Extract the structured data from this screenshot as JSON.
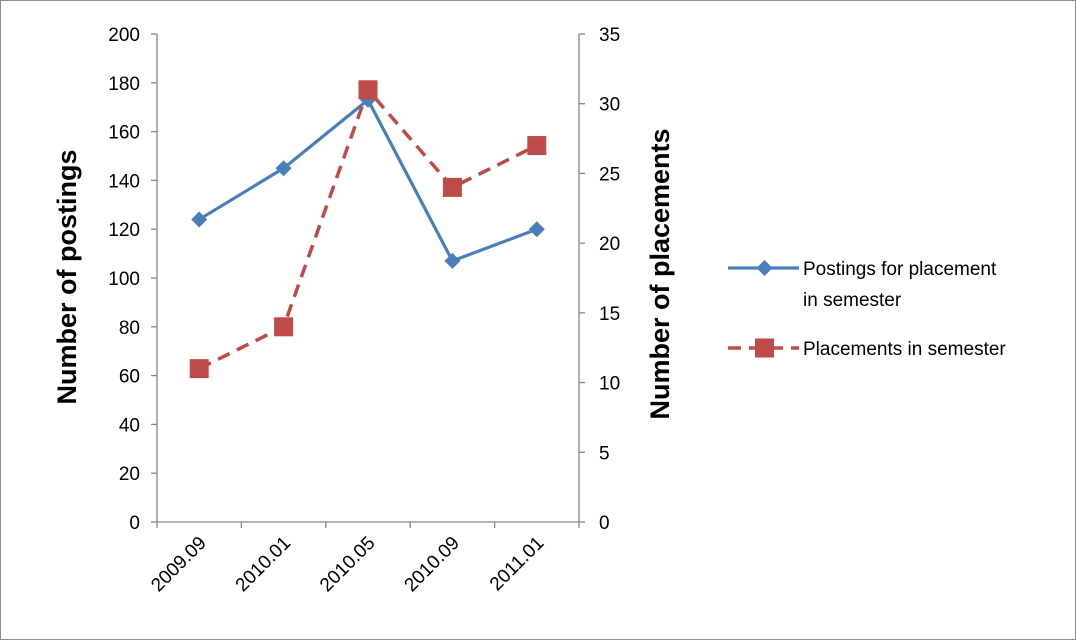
{
  "chart_data": {
    "type": "line",
    "categories": [
      "2009.09",
      "2010.01",
      "2010.05",
      "2010.09",
      "2011.01"
    ],
    "series": [
      {
        "name": "Postings for placement in semester",
        "name_lines": [
          "Postings for placement",
          "in semester"
        ],
        "axis": "left",
        "values": [
          124,
          145,
          173,
          107,
          120
        ],
        "color": "#4a7ebb",
        "line_style": "solid",
        "marker": "diamond"
      },
      {
        "name": "Placements in semester",
        "name_lines": [
          "Placements in semester"
        ],
        "axis": "right",
        "values": [
          11,
          14,
          31,
          24,
          27
        ],
        "color": "#be4b48",
        "line_style": "dashed",
        "marker": "square"
      }
    ],
    "y_left": {
      "label": "Number of postings",
      "range": [
        0,
        200
      ],
      "ticks": [
        "0",
        "20",
        "40",
        "60",
        "80",
        "100",
        "120",
        "140",
        "160",
        "180",
        "200"
      ]
    },
    "y_right": {
      "label": "Number of placements",
      "range": [
        0,
        35
      ],
      "ticks": [
        "0",
        "5",
        "10",
        "15",
        "20",
        "25",
        "30",
        "35"
      ]
    },
    "gridlines": false,
    "legend_position": "right"
  }
}
